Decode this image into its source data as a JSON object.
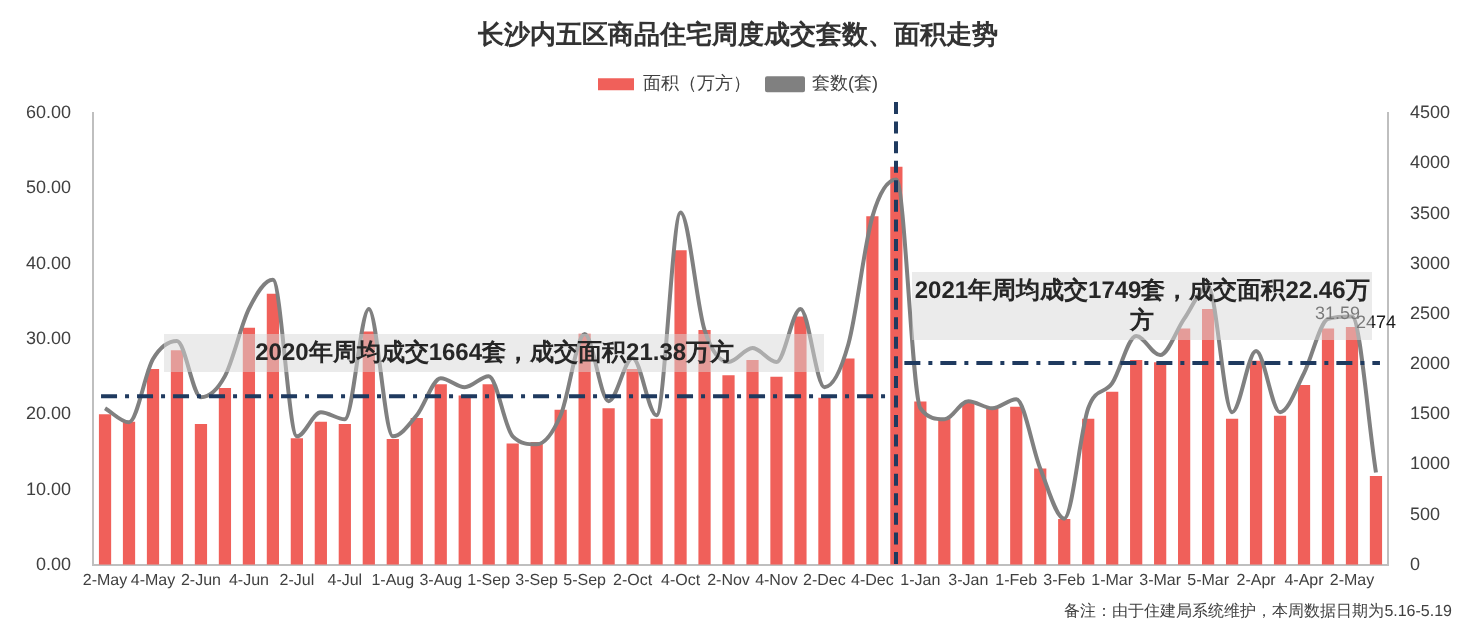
{
  "chart_data": {
    "type": "bar",
    "title": "长沙内五区商品住宅周度成交套数、面积走势",
    "categories": [
      "2-May",
      null,
      "4-May",
      null,
      "2-Jun",
      null,
      "4-Jun",
      null,
      "2-Jul",
      null,
      "4-Jul",
      null,
      "1-Aug",
      null,
      "3-Aug",
      null,
      "1-Sep",
      null,
      "3-Sep",
      null,
      "5-Sep",
      null,
      "2-Oct",
      null,
      "4-Oct",
      null,
      "2-Nov",
      null,
      "4-Nov",
      null,
      "2-Dec",
      null,
      "4-Dec",
      null,
      "1-Jan",
      null,
      "3-Jan",
      null,
      "1-Feb",
      null,
      "3-Feb",
      null,
      "1-Mar",
      null,
      "3-Mar",
      null,
      "5-Mar",
      null,
      "2-Apr",
      null,
      "4-Apr",
      null,
      "2-May",
      null
    ],
    "series": [
      {
        "name": "面积（万方）",
        "color": "#f0605a",
        "values": [
          20,
          19,
          26,
          28.5,
          18.7,
          23.5,
          31.5,
          36,
          16.8,
          19,
          18.7,
          31,
          16.7,
          19.5,
          24,
          22.5,
          24,
          16.1,
          16.3,
          20.6,
          30.7,
          20.8,
          26,
          19.4,
          41.8,
          31.2,
          25.2,
          27.2,
          25,
          33,
          22.2,
          27.4,
          46.3,
          52.9,
          21.7,
          19.4,
          21.5,
          20.8,
          21,
          12.8,
          6.1,
          19.4,
          23,
          27.2,
          26.9,
          31.4,
          34,
          19.4,
          27.1,
          19.8,
          23.9,
          31.4,
          31.59,
          11.8
        ],
        "value_labels": [
          null,
          null,
          null,
          null,
          null,
          null,
          null,
          null,
          null,
          null,
          null,
          null,
          null,
          null,
          null,
          null,
          null,
          null,
          null,
          null,
          null,
          null,
          null,
          null,
          null,
          null,
          null,
          null,
          null,
          null,
          null,
          null,
          null,
          null,
          null,
          null,
          null,
          null,
          null,
          null,
          null,
          null,
          null,
          null,
          null,
          null,
          null,
          null,
          null,
          null,
          null,
          null,
          "31.59",
          null
        ]
      },
      {
        "name": "套数(套)",
        "type": "line",
        "axis": "y2",
        "color": "#808080",
        "values": [
          1560,
          1420,
          2050,
          2230,
          1670,
          1880,
          2550,
          2840,
          1280,
          1520,
          1450,
          2550,
          1280,
          1490,
          1860,
          1770,
          1880,
          1280,
          1200,
          1490,
          2300,
          1630,
          2060,
          1490,
          3510,
          2340,
          2020,
          2160,
          2020,
          2550,
          1770,
          2200,
          3470,
          3840,
          1560,
          1450,
          1630,
          1560,
          1650,
          960,
          460,
          1560,
          1810,
          2280,
          2090,
          2450,
          2770,
          1520,
          2130,
          1520,
          1910,
          2450,
          2474,
          920
        ],
        "value_labels": [
          null,
          null,
          null,
          null,
          null,
          null,
          null,
          null,
          null,
          null,
          null,
          null,
          null,
          null,
          null,
          null,
          null,
          null,
          null,
          null,
          null,
          null,
          null,
          null,
          null,
          null,
          null,
          null,
          null,
          null,
          null,
          null,
          null,
          null,
          null,
          null,
          null,
          null,
          null,
          null,
          null,
          null,
          null,
          null,
          null,
          null,
          null,
          null,
          null,
          null,
          null,
          null,
          "2474",
          null
        ]
      }
    ],
    "ylim": [
      0,
      60
    ],
    "yticks": [
      {
        "value": 0,
        "label": "0.00"
      },
      {
        "value": 10,
        "label": "10.00"
      },
      {
        "value": 20,
        "label": "20.00"
      },
      {
        "value": 30,
        "label": "30.00"
      },
      {
        "value": 40,
        "label": "40.00"
      },
      {
        "value": 50,
        "label": "50.00"
      },
      {
        "value": 60,
        "label": "60.00"
      }
    ],
    "y2lim": [
      0,
      4500
    ],
    "y2ticks": [
      0,
      500,
      1000,
      1500,
      2000,
      2500,
      3000,
      3500,
      4000,
      4500
    ],
    "ref_lines": [
      {
        "axis": "y",
        "value": 22.4,
        "label": "2020年周均成交1664套，成交面积21.38万方",
        "color": "#1f3a5f",
        "line_style": "dashdot"
      },
      {
        "axis": "y",
        "value": 26.8,
        "label": "2021年周均成交1749套，成交面积22.46万方",
        "color": "#1f3a5f",
        "line_style": "dashdot"
      }
    ],
    "annotations": [
      "备注：由于住建局系统维护，本周数据日期为5.16-5.19"
    ],
    "legend": "top",
    "grid": false,
    "marker": "none"
  }
}
